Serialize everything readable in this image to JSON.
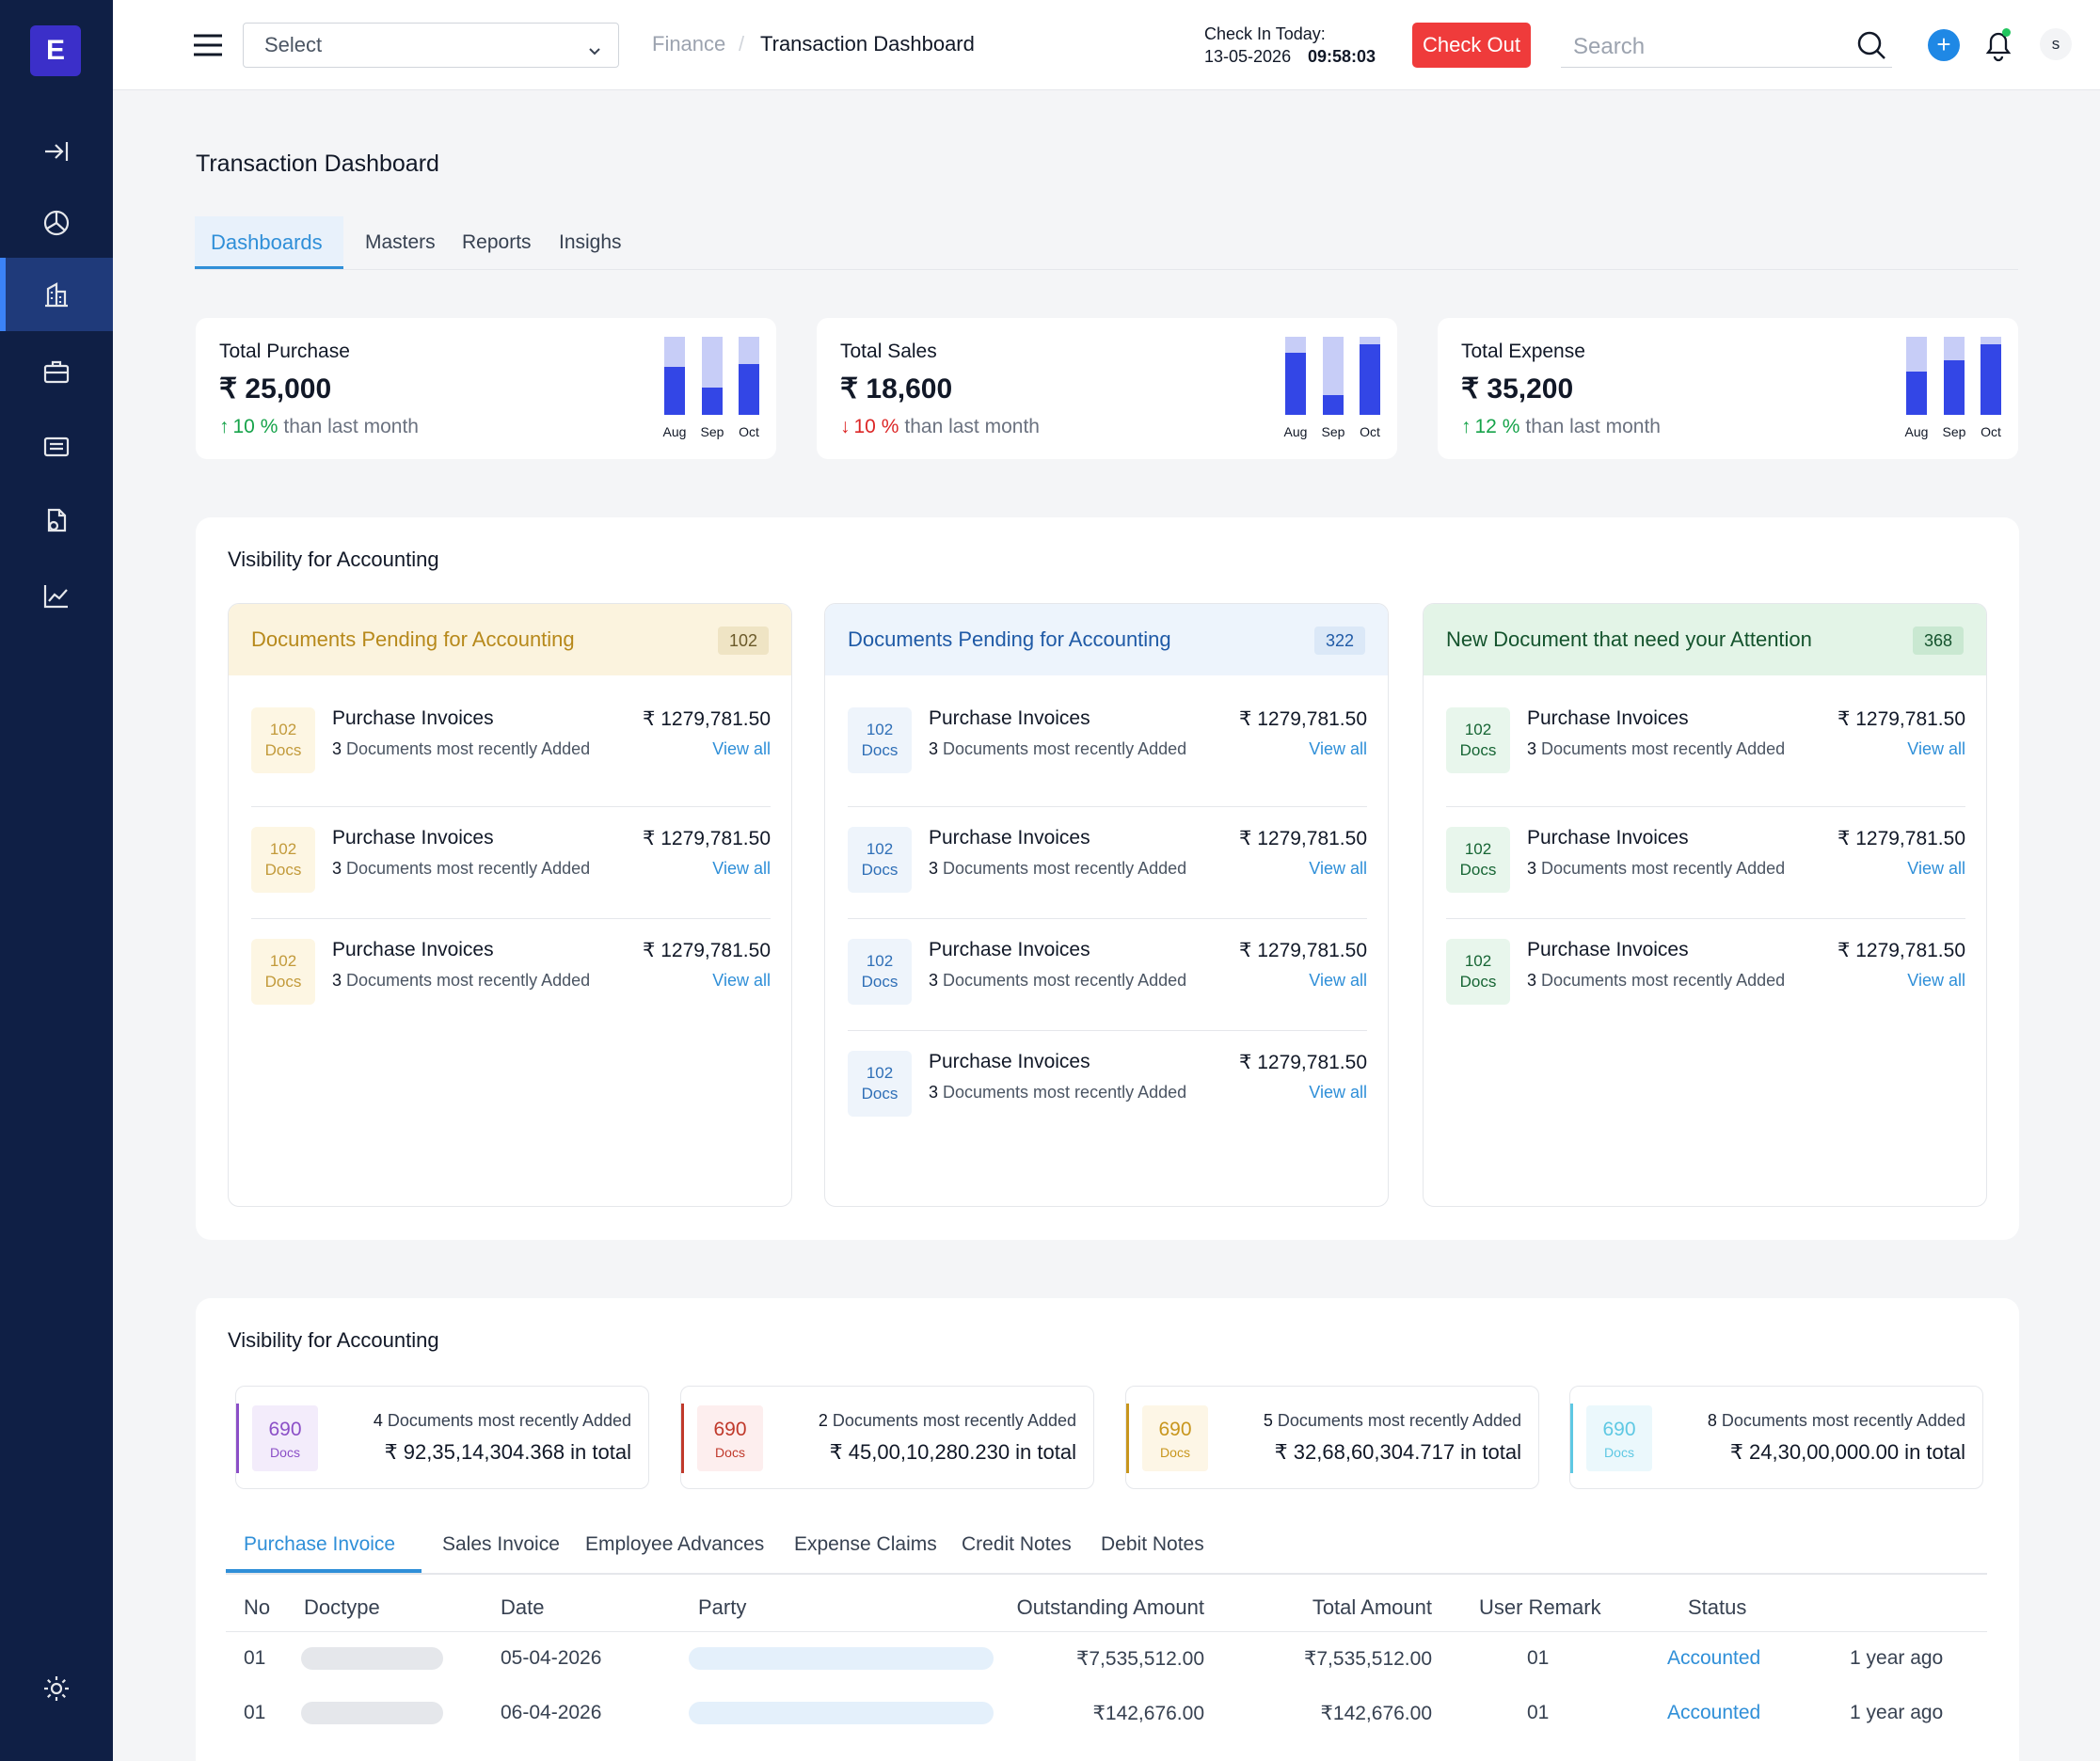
{
  "brand": {
    "logo_letter": "E",
    "accent": "#3b2fc9"
  },
  "sidebar": {
    "items": [
      {
        "icon": "collapse-arrow-icon"
      },
      {
        "icon": "pie-chart-icon"
      },
      {
        "icon": "building-icon",
        "active": true
      },
      {
        "icon": "briefcase-icon"
      },
      {
        "icon": "list-card-icon"
      },
      {
        "icon": "document-icon"
      },
      {
        "icon": "trend-chart-icon"
      }
    ],
    "settings_icon": "gear-icon"
  },
  "topbar": {
    "select_label": "Select",
    "breadcrumb": [
      "Finance",
      "Transaction Dashboard"
    ],
    "checkin_label": "Check In Today:",
    "checkin_date": "13-05-2026",
    "checkin_time": "09:58:03",
    "checkout_label": "Check Out",
    "search_placeholder": "Search",
    "avatar": "s"
  },
  "page": {
    "title": "Transaction Dashboard",
    "tabs": [
      "Dashboards",
      "Masters",
      "Reports",
      "Insighs"
    ],
    "active_tab": 0
  },
  "kpis": [
    {
      "title": "Total Purchase",
      "value": "₹ 25,000",
      "change": "10 %",
      "direction": "up",
      "suffix": "than last month",
      "months": [
        "Aug",
        "Sep",
        "Oct"
      ],
      "fill": [
        0.62,
        0.35,
        0.65
      ]
    },
    {
      "title": "Total Sales",
      "value": "₹ 18,600",
      "change": "10 %",
      "direction": "down",
      "suffix": "than last month",
      "months": [
        "Aug",
        "Sep",
        "Oct"
      ],
      "fill": [
        0.8,
        0.25,
        0.9
      ]
    },
    {
      "title": "Total Expense",
      "value": "₹ 35,200",
      "change": "12 %",
      "direction": "up",
      "suffix": "than last month",
      "months": [
        "Aug",
        "Sep",
        "Oct"
      ],
      "fill": [
        0.55,
        0.7,
        0.9
      ]
    }
  ],
  "visibility1": {
    "title": "Visibility for Accounting",
    "cards": [
      {
        "title": "Documents Pending for Accounting",
        "count": "102",
        "theme": "yellow",
        "rows": 3
      },
      {
        "title": "Documents Pending for Accounting",
        "count": "322",
        "theme": "blue",
        "rows": 4
      },
      {
        "title": "New Document that need your Attention",
        "count": "368",
        "theme": "green",
        "rows": 3
      }
    ],
    "row": {
      "docs_num": "102",
      "docs_label": "Docs",
      "name": "Purchase Invoices",
      "sub_num": "3",
      "sub": "Documents most recently Added",
      "amount": "₹ 1279,781.50",
      "view_all": "View all"
    }
  },
  "visibility2": {
    "title": "Visibility for Accounting",
    "summaries": [
      {
        "num": "690",
        "label": "Docs",
        "count": "4",
        "desc": "Documents most recently Added",
        "total": "₹ 92,35,14,304.368 in total",
        "color": "#8b4fc7",
        "bg": "#f3ecfb"
      },
      {
        "num": "690",
        "label": "Docs",
        "count": "2",
        "desc": "Documents most recently Added",
        "total": "₹ 45,00,10,280.230 in total",
        "color": "#c0392b",
        "bg": "#fdeeee"
      },
      {
        "num": "690",
        "label": "Docs",
        "count": "5",
        "desc": "Documents most recently Added",
        "total": "₹ 32,68,60,304.717 in total",
        "color": "#c8961d",
        "bg": "#fdf6e6"
      },
      {
        "num": "690",
        "label": "Docs",
        "count": "8",
        "desc": "Documents most recently Added",
        "total": "₹ 24,30,00,000.00 in total",
        "color": "#5ec8e3",
        "bg": "#ebf8fc"
      }
    ],
    "tabs": [
      "Purchase Invoice",
      "Sales Invoice",
      "Employee Advances",
      "Expense Claims",
      "Credit Notes",
      "Debit Notes"
    ],
    "table": {
      "headers": [
        "No",
        "Doctype",
        "Date",
        "Party",
        "Outstanding Amount",
        "Total Amount",
        "User Remark",
        "Status"
      ],
      "rows": [
        {
          "no": "01",
          "date": "05-04-2026",
          "outstanding": "₹7,535,512.00",
          "total": "₹7,535,512.00",
          "remark": "01",
          "status": "Accounted",
          "age": "1 year ago"
        },
        {
          "no": "01",
          "date": "06-04-2026",
          "outstanding": "₹142,676.00",
          "total": "₹142,676.00",
          "remark": "01",
          "status": "Accounted",
          "age": "1 year ago"
        }
      ]
    }
  }
}
